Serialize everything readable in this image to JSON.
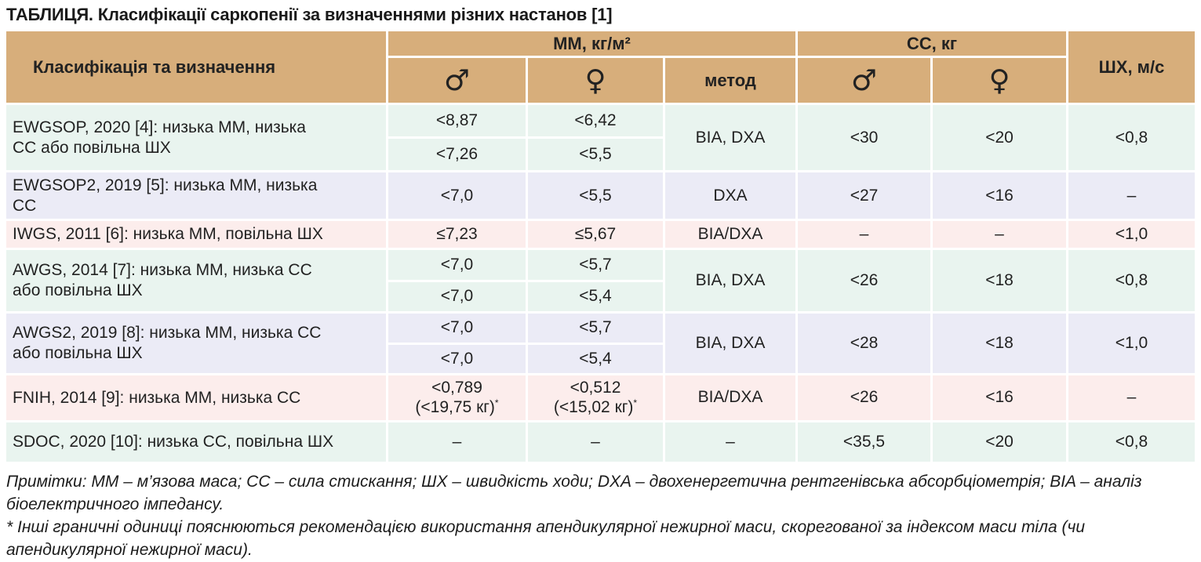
{
  "title": "ТАБЛИЦЯ. Класифікації саркопенії за визначеннями різних настанов [1]",
  "colors": {
    "header_bg": "#d7ae7b",
    "row_green": "#e9f4ef",
    "row_purple": "#ebebf6",
    "row_pink": "#fcedec",
    "text": "#222222"
  },
  "header": {
    "col_classification": "Класифікація та визначення",
    "group_mm": "ММ, кг/м²",
    "group_cc": "СС, кг",
    "col_shx": "ШХ, м/с",
    "col_method": "метод",
    "male_symbol": "♂",
    "female_symbol": "♀"
  },
  "rows": [
    {
      "name": "EWGSOP, 2020 [4]: низька ММ, низька СС або повільна ШХ",
      "tone": "green",
      "mm_male": [
        "<8,87",
        "<7,26"
      ],
      "mm_female": [
        "<6,42",
        "<5,5"
      ],
      "method": "BIA, DXA",
      "cc_male": "<30",
      "cc_female": "<20",
      "shx": "<0,8"
    },
    {
      "name": "EWGSOP2, 2019 [5]: низька ММ, низька СС",
      "tone": "purple",
      "mm_male": "<7,0",
      "mm_female": "<5,5",
      "method": "DXA",
      "cc_male": "<27",
      "cc_female": "<16",
      "shx": "–"
    },
    {
      "name": "IWGS, 2011 [6]: низька ММ, повільна ШХ",
      "tone": "pink",
      "mm_male": "≤7,23",
      "mm_female": "≤5,67",
      "method": "BIA/DXA",
      "cc_male": "–",
      "cc_female": "–",
      "shx": "<1,0"
    },
    {
      "name": "AWGS, 2014 [7]: низька ММ, низька СС або повільна ШХ",
      "tone": "green",
      "mm_male": [
        "<7,0",
        "<7,0"
      ],
      "mm_female": [
        "<5,7",
        "<5,4"
      ],
      "method": "BIA, DXA",
      "cc_male": "<26",
      "cc_female": "<18",
      "shx": "<0,8"
    },
    {
      "name": "AWGS2, 2019 [8]: низька ММ, низька СС або повільна ШХ",
      "tone": "purple",
      "mm_male": [
        "<7,0",
        "<7,0"
      ],
      "mm_female": [
        "<5,7",
        "<5,4"
      ],
      "method": "BIA, DXA",
      "cc_male": "<28",
      "cc_female": "<18",
      "shx": "<1,0"
    },
    {
      "name": "FNIH, 2014 [9]: низька ММ, низька СС",
      "tone": "pink",
      "mm_male_line1": "<0,789",
      "mm_male_line2": "(<19,75 кг)",
      "mm_female_line1": "<0,512",
      "mm_female_line2": "(<15,02 кг)",
      "asterisk": "*",
      "method": "BIA/DXA",
      "cc_male": "<26",
      "cc_female": "<16",
      "shx": "–"
    },
    {
      "name": "SDOC, 2020 [10]: низька СС, повільна ШХ",
      "tone": "green",
      "mm_male": "–",
      "mm_female": "–",
      "method": "–",
      "cc_male": "<35,5",
      "cc_female": "<20",
      "shx": "<0,8"
    }
  ],
  "notes": [
    "Примітки: ММ – м’язова маса; СС – сила стискання; ШХ – швидкість ходи; DXA – двохенергетична рентгенівська абсорбціометрія; BIA – аналіз біоелектричного імпедансу.",
    "* Інші граничні одиниці пояснюються рекомендацією використання апендикулярної нежирної маси, скорегованої за індексом маси тіла (чи апендикулярної нежирної маси)."
  ]
}
